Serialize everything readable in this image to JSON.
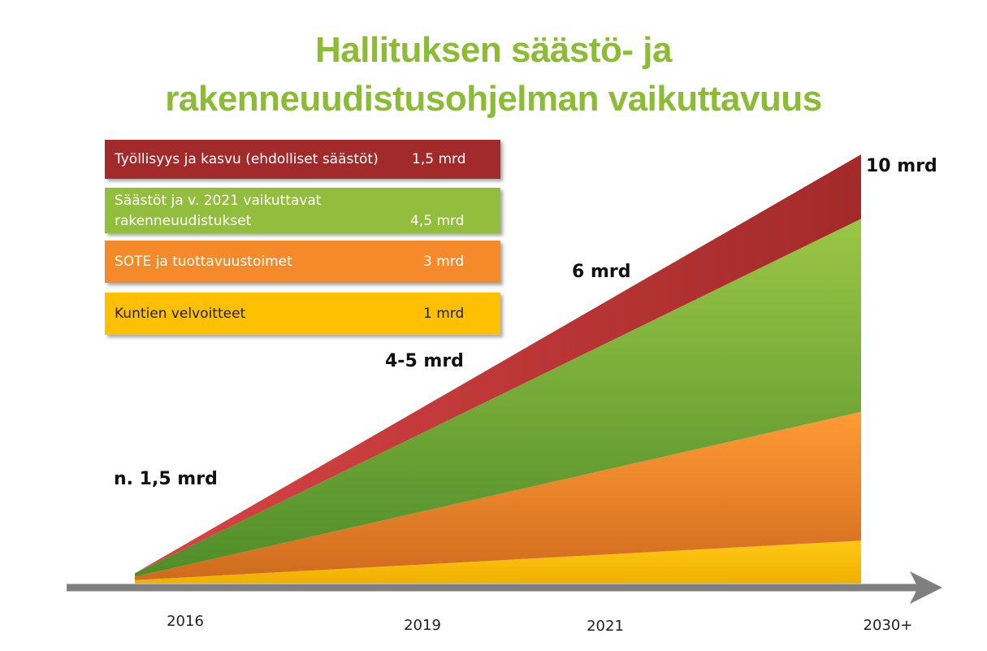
{
  "title_line1": "Hallituksen säästö- ja",
  "title_line2": "rakenneuudistusohjelman vaikuttavuus",
  "legend": [
    {
      "label": "Työllisyys ja kasvu  (ehdolliset säästöt)",
      "value": "1,5 mrd",
      "color": "#a32a2a"
    },
    {
      "label_line1": "Säästöt ja v. 2021 vaikuttavat",
      "label_line2": "rakenneuudistukset",
      "value": "4,5 mrd",
      "color": "#92bd3d"
    },
    {
      "label": "SOTE ja tuottavuustoimet",
      "value": "3 mrd",
      "color": "#f58a2a"
    },
    {
      "label": "Kuntien velvoitteet",
      "value": "1 mrd",
      "color": "#fec000"
    }
  ],
  "chart_data": {
    "type": "area",
    "stacked": true,
    "x": [
      "2016",
      "2030+"
    ],
    "x_ticks": [
      "2016",
      "2019",
      "2021",
      "2030+"
    ],
    "unit": "mrd",
    "series": [
      {
        "name": "Kuntien velvoitteet",
        "values": [
          0.1,
          1
        ],
        "color": "#fec000"
      },
      {
        "name": "SOTE ja tuottavuustoimet",
        "values": [
          0.1,
          3
        ],
        "color": "#f58a2a"
      },
      {
        "name": "Säästöt ja v. 2021 vaikuttavat rakenneuudistukset",
        "values": [
          0.1,
          4.5
        ],
        "color": "#92bd3d"
      },
      {
        "name": "Työllisyys ja kasvu  (ehdolliset säästöt)",
        "values": [
          0,
          1.5
        ],
        "color": "#c03333"
      }
    ],
    "annotations": [
      "n. 1,5 mrd",
      "4-5 mrd",
      "6 mrd",
      "10 mrd"
    ],
    "arrow_color": "#7f7f7f"
  }
}
